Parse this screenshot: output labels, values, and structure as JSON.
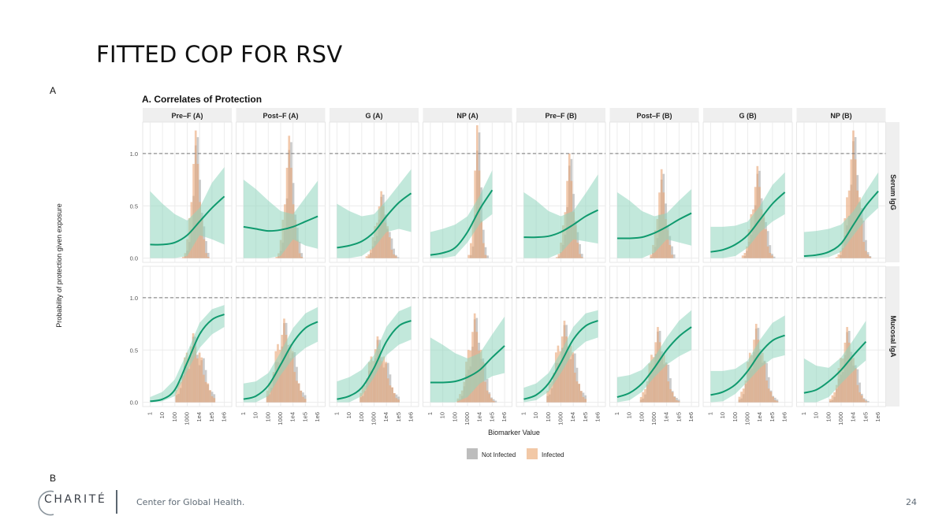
{
  "slide": {
    "title": "FITTED COP FOR RSV",
    "panel_label_a": "A",
    "panel_label_b": "B",
    "page_number": "24"
  },
  "footer": {
    "logo_text": "CHARITÉ",
    "organization": "Center for Global Health."
  },
  "chart_data": {
    "type": "line",
    "title": "A. Correlates of Protection",
    "xlabel": "Biomarker Value",
    "ylabel": "Probability of protection given exposure",
    "x_scale": "log10",
    "x_ticks": [
      "1",
      "10",
      "100",
      "1000",
      "1e4",
      "1e5",
      "1e6"
    ],
    "y_ticks": [
      "0.0",
      "0.5",
      "1.0"
    ],
    "ylim": [
      0,
      1.3
    ],
    "reference_line": {
      "y": 1.0,
      "style": "dashed"
    },
    "grid": true,
    "legend": {
      "position": "bottom",
      "entries": [
        {
          "label": "Not Infected",
          "color": "#bdbdbd"
        },
        {
          "label": "Infected",
          "color": "#f2c8a6"
        }
      ]
    },
    "colors": {
      "curve": "#0f9a6e",
      "ribbon": "#8fd6bd",
      "not_infected": "#a9a9a9",
      "infected": "#e9a574",
      "strip": "#efefef"
    },
    "columns": [
      "Pre–F (A)",
      "Post–F (A)",
      "G (A)",
      "NP (A)",
      "Pre–F (B)",
      "Post–F (B)",
      "G (B)",
      "NP (B)"
    ],
    "rows": [
      "Serum IgG",
      "Mucosal IgA"
    ],
    "facets": [
      {
        "row": "Serum IgG",
        "column": "Pre–F (A)",
        "curve": {
          "x": [
            0,
            1,
            2,
            3,
            4,
            5,
            6
          ],
          "y": [
            0.13,
            0.13,
            0.15,
            0.22,
            0.35,
            0.48,
            0.59
          ]
        },
        "ci_low": [
          0.0,
          0.0,
          0.0,
          0.02,
          0.22,
          0.18,
          0.13
        ],
        "ci_high": [
          0.64,
          0.52,
          0.42,
          0.36,
          0.48,
          0.72,
          0.87
        ]
      },
      {
        "row": "Serum IgG",
        "column": "Post–F (A)",
        "curve": {
          "x": [
            0,
            1,
            2,
            3,
            4,
            5,
            6
          ],
          "y": [
            0.3,
            0.28,
            0.26,
            0.27,
            0.3,
            0.35,
            0.4
          ]
        },
        "ci_low": [
          0.0,
          0.0,
          0.0,
          0.02,
          0.18,
          0.12,
          0.09
        ],
        "ci_high": [
          0.75,
          0.66,
          0.55,
          0.45,
          0.42,
          0.58,
          0.74
        ]
      },
      {
        "row": "Serum IgG",
        "column": "G (A)",
        "curve": {
          "x": [
            0,
            1,
            2,
            3,
            4,
            5,
            6
          ],
          "y": [
            0.1,
            0.12,
            0.16,
            0.25,
            0.4,
            0.53,
            0.62
          ]
        },
        "ci_low": [
          0.0,
          0.0,
          0.02,
          0.1,
          0.25,
          0.28,
          0.25
        ],
        "ci_high": [
          0.52,
          0.45,
          0.4,
          0.42,
          0.55,
          0.7,
          0.85
        ]
      },
      {
        "row": "Serum IgG",
        "column": "NP (A)",
        "curve": {
          "x": [
            0,
            1,
            2,
            3,
            4,
            5
          ],
          "y": [
            0.03,
            0.05,
            0.1,
            0.25,
            0.47,
            0.65
          ]
        },
        "ci_low": [
          0.0,
          0.0,
          0.02,
          0.15,
          0.33,
          0.42
        ],
        "ci_high": [
          0.25,
          0.28,
          0.32,
          0.4,
          0.6,
          0.84
        ]
      },
      {
        "row": "Serum IgG",
        "column": "Pre–F (B)",
        "curve": {
          "x": [
            0,
            1,
            2,
            3,
            4,
            5,
            6
          ],
          "y": [
            0.2,
            0.2,
            0.21,
            0.25,
            0.32,
            0.4,
            0.46
          ]
        },
        "ci_low": [
          0.0,
          0.0,
          0.0,
          0.05,
          0.18,
          0.16,
          0.14
        ],
        "ci_high": [
          0.63,
          0.55,
          0.45,
          0.4,
          0.45,
          0.62,
          0.8
        ]
      },
      {
        "row": "Serum IgG",
        "column": "Post–F (B)",
        "curve": {
          "x": [
            0,
            1,
            2,
            3,
            4,
            5,
            6
          ],
          "y": [
            0.19,
            0.19,
            0.2,
            0.24,
            0.3,
            0.37,
            0.43
          ]
        },
        "ci_low": [
          0.0,
          0.0,
          0.0,
          0.05,
          0.18,
          0.15,
          0.12
        ],
        "ci_high": [
          0.63,
          0.55,
          0.45,
          0.4,
          0.43,
          0.55,
          0.66
        ]
      },
      {
        "row": "Serum IgG",
        "column": "G (B)",
        "curve": {
          "x": [
            0,
            1,
            2,
            3,
            4,
            5,
            6
          ],
          "y": [
            0.06,
            0.08,
            0.13,
            0.22,
            0.37,
            0.52,
            0.63
          ]
        },
        "ci_low": [
          0.0,
          0.0,
          0.02,
          0.1,
          0.25,
          0.35,
          0.42
        ],
        "ci_high": [
          0.3,
          0.3,
          0.31,
          0.35,
          0.5,
          0.7,
          0.82
        ]
      },
      {
        "row": "Serum IgG",
        "column": "NP (B)",
        "curve": {
          "x": [
            0,
            1,
            2,
            3,
            4,
            5,
            6
          ],
          "y": [
            0.02,
            0.03,
            0.06,
            0.14,
            0.32,
            0.5,
            0.64
          ]
        },
        "ci_low": [
          0.0,
          0.0,
          0.01,
          0.06,
          0.22,
          0.37,
          0.48
        ],
        "ci_high": [
          0.25,
          0.26,
          0.28,
          0.32,
          0.45,
          0.64,
          0.82
        ]
      },
      {
        "row": "Mucosal IgA",
        "column": "Pre–F (A)",
        "curve": {
          "x": [
            0,
            1,
            2,
            3,
            4,
            5,
            6
          ],
          "y": [
            0.01,
            0.03,
            0.12,
            0.38,
            0.65,
            0.79,
            0.84
          ]
        },
        "ci_low": [
          0.0,
          0.01,
          0.06,
          0.3,
          0.52,
          0.65,
          0.72
        ],
        "ci_high": [
          0.05,
          0.1,
          0.22,
          0.48,
          0.76,
          0.89,
          0.93
        ]
      },
      {
        "row": "Mucosal IgA",
        "column": "Post–F (A)",
        "curve": {
          "x": [
            0,
            1,
            2,
            3,
            4,
            5,
            6
          ],
          "y": [
            0.03,
            0.06,
            0.16,
            0.36,
            0.57,
            0.71,
            0.77
          ]
        },
        "ci_low": [
          0.0,
          0.0,
          0.06,
          0.26,
          0.42,
          0.52,
          0.58
        ],
        "ci_high": [
          0.18,
          0.2,
          0.28,
          0.48,
          0.71,
          0.85,
          0.91
        ]
      },
      {
        "row": "Mucosal IgA",
        "column": "G (A)",
        "curve": {
          "x": [
            0,
            1,
            2,
            3,
            4,
            5,
            6
          ],
          "y": [
            0.03,
            0.06,
            0.14,
            0.33,
            0.58,
            0.73,
            0.78
          ]
        },
        "ci_low": [
          0.0,
          0.0,
          0.06,
          0.24,
          0.45,
          0.55,
          0.6
        ],
        "ci_high": [
          0.2,
          0.24,
          0.31,
          0.45,
          0.72,
          0.87,
          0.92
        ]
      },
      {
        "row": "Mucosal IgA",
        "column": "NP (A)",
        "curve": {
          "x": [
            0,
            1,
            2,
            3,
            4,
            5,
            6
          ],
          "y": [
            0.19,
            0.19,
            0.2,
            0.24,
            0.31,
            0.43,
            0.54
          ]
        },
        "ci_low": [
          0.0,
          0.0,
          0.0,
          0.05,
          0.18,
          0.25,
          0.28
        ],
        "ci_high": [
          0.62,
          0.55,
          0.47,
          0.42,
          0.47,
          0.65,
          0.82
        ]
      },
      {
        "row": "Mucosal IgA",
        "column": "Pre–F (B)",
        "curve": {
          "x": [
            0,
            1,
            2,
            3,
            4,
            5,
            6
          ],
          "y": [
            0.03,
            0.07,
            0.18,
            0.38,
            0.6,
            0.73,
            0.78
          ]
        },
        "ci_low": [
          0.0,
          0.02,
          0.1,
          0.28,
          0.48,
          0.58,
          0.62
        ],
        "ci_high": [
          0.14,
          0.18,
          0.28,
          0.48,
          0.72,
          0.85,
          0.88
        ]
      },
      {
        "row": "Mucosal IgA",
        "column": "Post–F (B)",
        "curve": {
          "x": [
            0,
            1,
            2,
            3,
            4,
            5,
            6
          ],
          "y": [
            0.05,
            0.09,
            0.18,
            0.33,
            0.5,
            0.63,
            0.72
          ]
        },
        "ci_low": [
          0.0,
          0.02,
          0.1,
          0.24,
          0.36,
          0.44,
          0.5
        ],
        "ci_high": [
          0.24,
          0.26,
          0.31,
          0.43,
          0.62,
          0.78,
          0.88
        ]
      },
      {
        "row": "Mucosal IgA",
        "column": "G (B)",
        "curve": {
          "x": [
            0,
            1,
            2,
            3,
            4,
            5,
            6
          ],
          "y": [
            0.07,
            0.1,
            0.17,
            0.3,
            0.47,
            0.59,
            0.64
          ]
        },
        "ci_low": [
          0.0,
          0.01,
          0.08,
          0.2,
          0.33,
          0.42,
          0.45
        ],
        "ci_high": [
          0.3,
          0.3,
          0.32,
          0.4,
          0.6,
          0.76,
          0.83
        ]
      },
      {
        "row": "Mucosal IgA",
        "column": "NP (B)",
        "curve": {
          "x": [
            0,
            1,
            2,
            3,
            4,
            5
          ],
          "y": [
            0.09,
            0.12,
            0.2,
            0.31,
            0.45,
            0.58
          ]
        },
        "ci_low": [
          0.0,
          0.0,
          0.05,
          0.18,
          0.3,
          0.4
        ],
        "ci_high": [
          0.42,
          0.35,
          0.33,
          0.43,
          0.6,
          0.78
        ]
      }
    ]
  }
}
